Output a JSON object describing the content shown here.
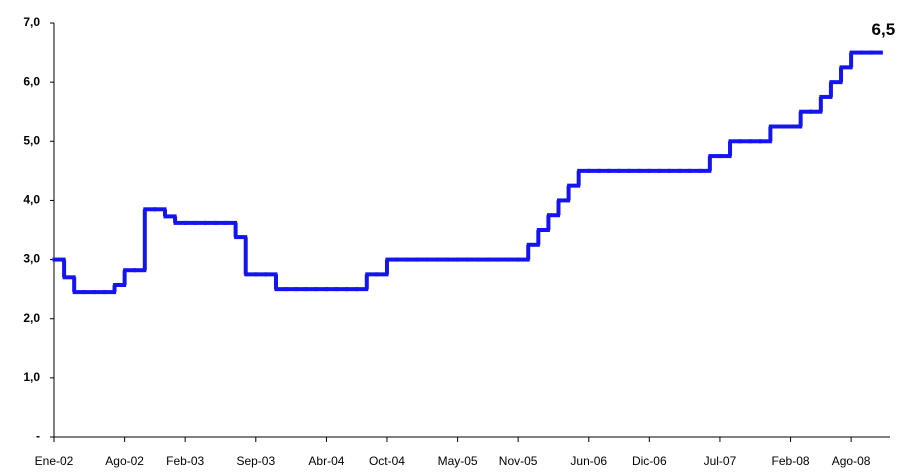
{
  "chart_data": {
    "type": "line",
    "step": true,
    "categories": [
      "Ene-02",
      null,
      null,
      null,
      null,
      null,
      null,
      "Ago-02",
      null,
      null,
      null,
      null,
      null,
      "Feb-03",
      null,
      null,
      null,
      null,
      null,
      null,
      "Sep-03",
      null,
      null,
      null,
      null,
      null,
      null,
      "Abr-04",
      null,
      null,
      null,
      null,
      null,
      "Oct-04",
      null,
      null,
      null,
      null,
      null,
      null,
      "May-05",
      null,
      null,
      null,
      null,
      null,
      "Nov-05",
      null,
      null,
      null,
      null,
      null,
      null,
      "Jun-06",
      null,
      null,
      null,
      null,
      null,
      "Dic-06",
      null,
      null,
      null,
      null,
      null,
      null,
      "Jul-07",
      null,
      null,
      null,
      null,
      null,
      null,
      "Feb-08",
      null,
      null,
      null,
      null,
      null,
      "Ago-08",
      null,
      null
    ],
    "values": [
      3.0,
      2.7,
      2.45,
      2.45,
      2.45,
      2.45,
      2.57,
      2.82,
      2.82,
      3.85,
      3.85,
      3.73,
      3.62,
      3.62,
      3.62,
      3.62,
      3.62,
      3.62,
      3.38,
      2.75,
      2.75,
      2.75,
      2.5,
      2.5,
      2.5,
      2.5,
      2.5,
      2.5,
      2.5,
      2.5,
      2.5,
      2.75,
      2.75,
      3.0,
      3.0,
      3.0,
      3.0,
      3.0,
      3.0,
      3.0,
      3.0,
      3.0,
      3.0,
      3.0,
      3.0,
      3.0,
      3.0,
      3.25,
      3.5,
      3.75,
      4.0,
      4.25,
      4.5,
      4.5,
      4.5,
      4.5,
      4.5,
      4.5,
      4.5,
      4.5,
      4.5,
      4.5,
      4.5,
      4.5,
      4.5,
      4.75,
      4.75,
      5.0,
      5.0,
      5.0,
      5.0,
      5.25,
      5.25,
      5.25,
      5.5,
      5.5,
      5.75,
      6.0,
      6.25,
      6.5,
      6.5,
      6.5
    ],
    "value_labels": [
      null,
      null,
      null,
      null,
      null,
      null,
      null,
      null,
      null,
      null,
      null,
      null,
      null,
      null,
      null,
      null,
      null,
      null,
      null,
      null,
      null,
      null,
      null,
      null,
      null,
      null,
      null,
      null,
      null,
      null,
      null,
      null,
      null,
      null,
      null,
      null,
      null,
      null,
      null,
      null,
      null,
      null,
      null,
      null,
      null,
      null,
      null,
      null,
      null,
      null,
      null,
      null,
      null,
      null,
      null,
      null,
      null,
      null,
      null,
      null,
      null,
      null,
      null,
      null,
      null,
      null,
      null,
      null,
      null,
      null,
      null,
      null,
      null,
      null,
      null,
      null,
      null,
      null,
      null,
      null,
      null,
      "6,5"
    ],
    "color": "#1414f0",
    "ylim": [
      0,
      7
    ],
    "yticks": [
      {
        "value": 0,
        "label": "-"
      },
      {
        "value": 1,
        "label": "1,0"
      },
      {
        "value": 2,
        "label": "2,0"
      },
      {
        "value": 3,
        "label": "3,0"
      },
      {
        "value": 4,
        "label": "4,0"
      },
      {
        "value": 5,
        "label": "5,0"
      },
      {
        "value": 6,
        "label": "6,0"
      },
      {
        "value": 7,
        "label": "7,0"
      }
    ],
    "grid": false
  }
}
